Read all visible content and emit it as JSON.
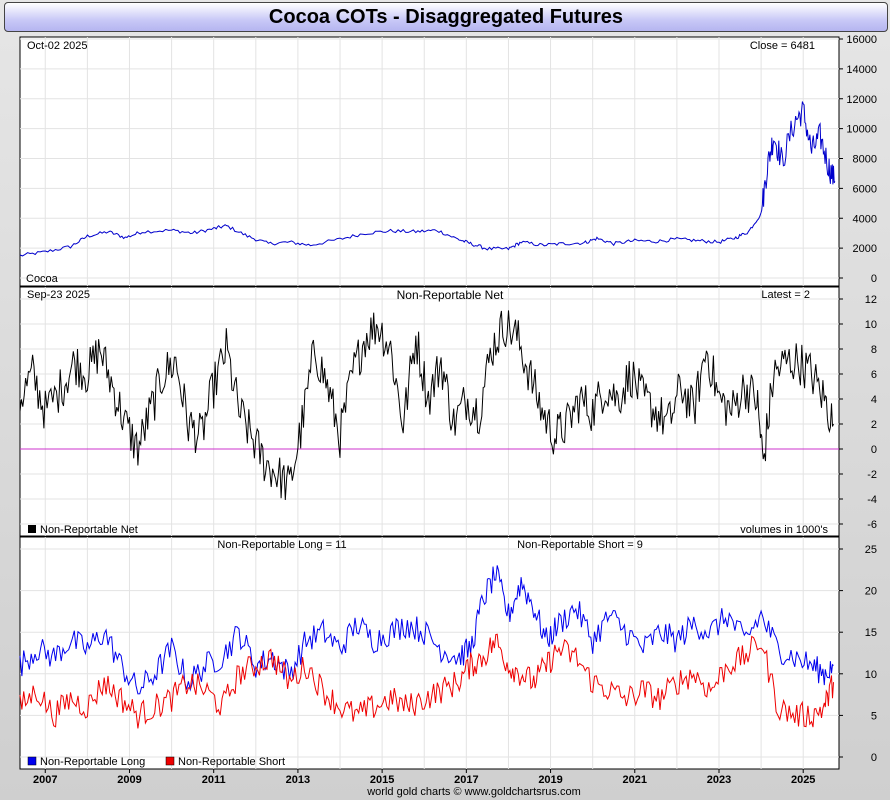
{
  "title": "Cocoa COTs - Disaggregated Futures",
  "footer": "world gold charts © www.goldchartsrus.com",
  "colors": {
    "price": "#0000cc",
    "net": "#000000",
    "long": "#0000ee",
    "short": "#ee0000",
    "zero_line": "#cc33cc",
    "grid": "#e3e3e3"
  },
  "x_axis": {
    "start_year": 2006.4,
    "end_year": 2025.85,
    "tick_labels": [
      "2007",
      "2009",
      "2011",
      "2013",
      "2015",
      "2017",
      "2019",
      "2021",
      "2023",
      "2025"
    ]
  },
  "panels": {
    "price": {
      "date": "Oct-02  2025",
      "readout": "Close = 6481",
      "label": "Cocoa",
      "y_ticks": [
        "0",
        "2000",
        "4000",
        "6000",
        "8000",
        "10000",
        "12000",
        "14000",
        "16000"
      ]
    },
    "net": {
      "date": "Sep-23  2025",
      "title": "Non-Reportable Net",
      "readout": "Latest = 2",
      "legend": "Non-Reportable Net",
      "units": "volumes in 1000's",
      "y_ticks": [
        "-6",
        "-4",
        "-2",
        "0",
        "2",
        "4",
        "6",
        "8",
        "10",
        "12"
      ]
    },
    "positions": {
      "long_readout": "Non-Reportable Long = 11",
      "short_readout": "Non-Reportable Short = 9",
      "legend_long": "Non-Reportable Long",
      "legend_short": "Non-Reportable Short",
      "y_ticks": [
        "0",
        "5",
        "10",
        "15",
        "20",
        "25"
      ]
    }
  },
  "chart_data": [
    {
      "type": "line",
      "title": "Cocoa",
      "ylim": [
        0,
        16000
      ],
      "series": [
        {
          "name": "Cocoa",
          "color": "#0000cc",
          "x": [
            2006.4,
            2007.0,
            2007.6,
            2008.0,
            2008.5,
            2008.9,
            2009.3,
            2010.0,
            2010.5,
            2011.0,
            2011.3,
            2011.8,
            2012.3,
            2012.8,
            2013.3,
            2014.0,
            2014.6,
            2015.2,
            2015.8,
            2016.3,
            2016.8,
            2017.1,
            2017.5,
            2018.0,
            2018.3,
            2018.8,
            2019.3,
            2019.8,
            2020.1,
            2020.5,
            2021.0,
            2021.5,
            2022.0,
            2022.5,
            2023.0,
            2023.4,
            2023.7,
            2024.0,
            2024.15,
            2024.3,
            2024.5,
            2024.8,
            2025.0,
            2025.2,
            2025.4,
            2025.6,
            2025.75
          ],
          "y": [
            1500,
            1750,
            2100,
            2800,
            3100,
            2700,
            3100,
            3200,
            3000,
            3300,
            3500,
            2800,
            2300,
            2400,
            2200,
            2600,
            3000,
            3150,
            3100,
            3200,
            2600,
            2300,
            1950,
            1950,
            2400,
            2200,
            2300,
            2350,
            2650,
            2300,
            2500,
            2450,
            2600,
            2500,
            2400,
            2700,
            3100,
            4300,
            7500,
            9500,
            7800,
            10500,
            11200,
            8500,
            9500,
            7500,
            6481
          ]
        }
      ]
    },
    {
      "type": "line",
      "title": "Non-Reportable Net",
      "ylim": [
        -6,
        12
      ],
      "series": [
        {
          "name": "Non-Reportable Net",
          "color": "#000000",
          "x": [
            2006.4,
            2006.7,
            2007.0,
            2007.4,
            2007.7,
            2008.0,
            2008.3,
            2008.6,
            2008.9,
            2009.2,
            2009.5,
            2009.8,
            2010.1,
            2010.4,
            2010.7,
            2011.0,
            2011.3,
            2011.6,
            2011.9,
            2012.2,
            2012.5,
            2012.8,
            2013.1,
            2013.4,
            2013.7,
            2014.0,
            2014.3,
            2014.6,
            2014.9,
            2015.2,
            2015.5,
            2015.8,
            2016.1,
            2016.4,
            2016.7,
            2017.0,
            2017.3,
            2017.6,
            2017.9,
            2018.2,
            2018.5,
            2018.8,
            2019.1,
            2019.4,
            2019.7,
            2020.0,
            2020.3,
            2020.6,
            2020.9,
            2021.2,
            2021.5,
            2021.8,
            2022.1,
            2022.4,
            2022.7,
            2023.0,
            2023.3,
            2023.6,
            2023.9,
            2024.05,
            2024.3,
            2024.6,
            2024.9,
            2025.2,
            2025.5,
            2025.72
          ],
          "y": [
            4,
            6,
            3,
            5,
            7,
            6,
            8,
            5,
            2,
            0,
            3,
            6,
            7,
            2,
            1,
            5,
            8,
            3,
            1,
            -1,
            -2,
            -3,
            2,
            8,
            5,
            1,
            6,
            9,
            10,
            8,
            2,
            9,
            4,
            7,
            2,
            4,
            3,
            8,
            10,
            9,
            6,
            3,
            1,
            2,
            4,
            3,
            5,
            4,
            6,
            4,
            3,
            2,
            5,
            3,
            8,
            4,
            3,
            5,
            4,
            -1,
            6,
            7,
            7,
            6,
            4,
            2
          ]
        }
      ]
    },
    {
      "type": "line",
      "title": "Non-Reportable Long / Short",
      "ylim": [
        0,
        25
      ],
      "series": [
        {
          "name": "Non-Reportable Long",
          "color": "#0000ee",
          "x": [
            2006.4,
            2006.8,
            2007.2,
            2007.6,
            2008.0,
            2008.4,
            2008.8,
            2009.2,
            2009.6,
            2010.0,
            2010.4,
            2010.8,
            2011.2,
            2011.6,
            2012.0,
            2012.4,
            2012.8,
            2013.2,
            2013.6,
            2014.0,
            2014.4,
            2014.8,
            2015.2,
            2015.6,
            2016.0,
            2016.4,
            2016.8,
            2017.1,
            2017.4,
            2017.7,
            2018.0,
            2018.3,
            2018.6,
            2018.9,
            2019.2,
            2019.6,
            2020.0,
            2020.4,
            2020.8,
            2021.2,
            2021.6,
            2022.0,
            2022.4,
            2022.8,
            2023.2,
            2023.6,
            2024.0,
            2024.4,
            2024.8,
            2025.2,
            2025.5,
            2025.72
          ],
          "y": [
            11,
            13,
            12,
            14,
            13,
            15,
            11,
            8,
            10,
            13,
            9,
            11,
            12,
            15,
            11,
            12,
            10,
            14,
            15,
            13,
            16,
            14,
            15,
            16,
            15,
            13,
            12,
            13,
            19,
            22,
            17,
            21,
            18,
            14,
            16,
            18,
            14,
            17,
            15,
            13,
            15,
            14,
            16,
            15,
            17,
            14,
            17,
            13,
            12,
            11,
            10,
            11
          ]
        },
        {
          "name": "Non-Reportable Short",
          "color": "#ee0000",
          "x": [
            2006.4,
            2006.8,
            2007.2,
            2007.6,
            2008.0,
            2008.4,
            2008.8,
            2009.2,
            2009.6,
            2010.0,
            2010.4,
            2010.8,
            2011.2,
            2011.6,
            2012.0,
            2012.4,
            2012.8,
            2013.2,
            2013.6,
            2014.0,
            2014.4,
            2014.8,
            2015.2,
            2015.6,
            2016.0,
            2016.4,
            2016.8,
            2017.1,
            2017.4,
            2017.7,
            2018.0,
            2018.3,
            2018.6,
            2018.9,
            2019.2,
            2019.6,
            2020.0,
            2020.4,
            2020.8,
            2021.2,
            2021.6,
            2022.0,
            2022.4,
            2022.8,
            2023.2,
            2023.6,
            2024.0,
            2024.4,
            2024.8,
            2025.2,
            2025.5,
            2025.72
          ],
          "y": [
            6,
            8,
            5,
            7,
            6,
            9,
            7,
            5,
            6,
            7,
            9,
            8,
            6,
            10,
            11,
            12,
            9,
            11,
            8,
            6,
            5,
            6,
            7,
            6,
            7,
            8,
            9,
            11,
            12,
            14,
            11,
            10,
            9,
            11,
            13,
            12,
            9,
            8,
            7,
            8,
            7,
            9,
            10,
            8,
            11,
            12,
            14,
            6,
            5,
            5,
            6,
            9
          ]
        }
      ]
    }
  ]
}
